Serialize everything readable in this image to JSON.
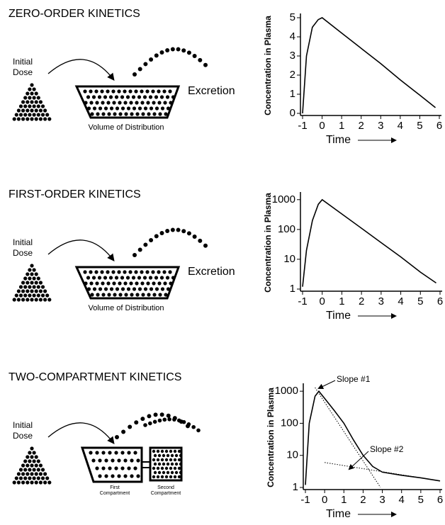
{
  "panels": [
    {
      "title": "ZERO-ORDER KINETICS",
      "dose": [
        "Initial",
        "Dose"
      ],
      "excretion": "Excretion",
      "volume": "Volume of Distribution"
    },
    {
      "title": "FIRST-ORDER KINETICS",
      "dose": [
        "Initial",
        "Dose"
      ],
      "excretion": "Excretion",
      "volume": "Volume of Distribution"
    },
    {
      "title": "TWO-COMPARTMENT KINETICS",
      "dose": [
        "Initial",
        "Dose"
      ],
      "compartments": [
        [
          "First",
          "Compartment"
        ],
        [
          "Second",
          "Compartment"
        ]
      ]
    }
  ],
  "chart_data": [
    {
      "type": "line",
      "ylabel": "Concentration in Plasma",
      "xlabel": "Time",
      "color": "#000000",
      "x": [
        -1,
        -0.8,
        -0.5,
        -0.2,
        0,
        1,
        2,
        3,
        4,
        5,
        5.8
      ],
      "values": [
        0,
        3,
        4.5,
        4.9,
        5,
        4.2,
        3.4,
        2.6,
        1.75,
        0.95,
        0.3
      ],
      "xlim": [
        -1,
        6
      ],
      "xticks": [
        -1,
        0,
        1,
        2,
        3,
        4,
        5,
        6
      ],
      "ylim": [
        0,
        5
      ],
      "yticks": [
        0,
        1,
        2,
        3,
        4,
        5
      ],
      "log": false
    },
    {
      "type": "line",
      "ylabel": "Concentration in Plasma",
      "xlabel": "Time",
      "color": "#000000",
      "x": [
        -1,
        -0.8,
        -0.5,
        -0.2,
        0,
        1,
        2,
        3,
        4,
        5,
        5.8
      ],
      "values": [
        1.2,
        20,
        200,
        700,
        1000,
        330,
        110,
        36,
        12,
        3.7,
        1.6
      ],
      "xlim": [
        -1,
        6
      ],
      "xticks": [
        -1,
        0,
        1,
        2,
        3,
        4,
        5,
        6
      ],
      "ylim": [
        1,
        1300
      ],
      "yticks": [
        1,
        10,
        100,
        1000
      ],
      "log": true
    },
    {
      "type": "line",
      "ylabel": "Concentration in Plasma",
      "xlabel": "Time",
      "color": "#000000",
      "x": [
        -1,
        -0.8,
        -0.5,
        -0.3,
        0,
        0.5,
        1,
        1.5,
        2,
        2.5,
        3,
        4,
        5,
        6
      ],
      "values": [
        1.2,
        100,
        700,
        1000,
        600,
        250,
        100,
        30,
        10,
        4.5,
        3,
        2.4,
        2,
        1.6
      ],
      "xlim": [
        -1,
        6
      ],
      "xticks": [
        -1,
        0,
        1,
        2,
        3,
        4,
        5,
        6
      ],
      "ylim": [
        1,
        1300
      ],
      "yticks": [
        1,
        10,
        100,
        1000
      ],
      "log": true,
      "guides": [
        {
          "x": [
            -0.5,
            2.9
          ],
          "values": [
            1300,
            1
          ]
        },
        {
          "x": [
            0,
            6
          ],
          "values": [
            6,
            1.6
          ]
        }
      ],
      "annotations": [
        "Slope #1",
        "Slope #2"
      ]
    }
  ]
}
